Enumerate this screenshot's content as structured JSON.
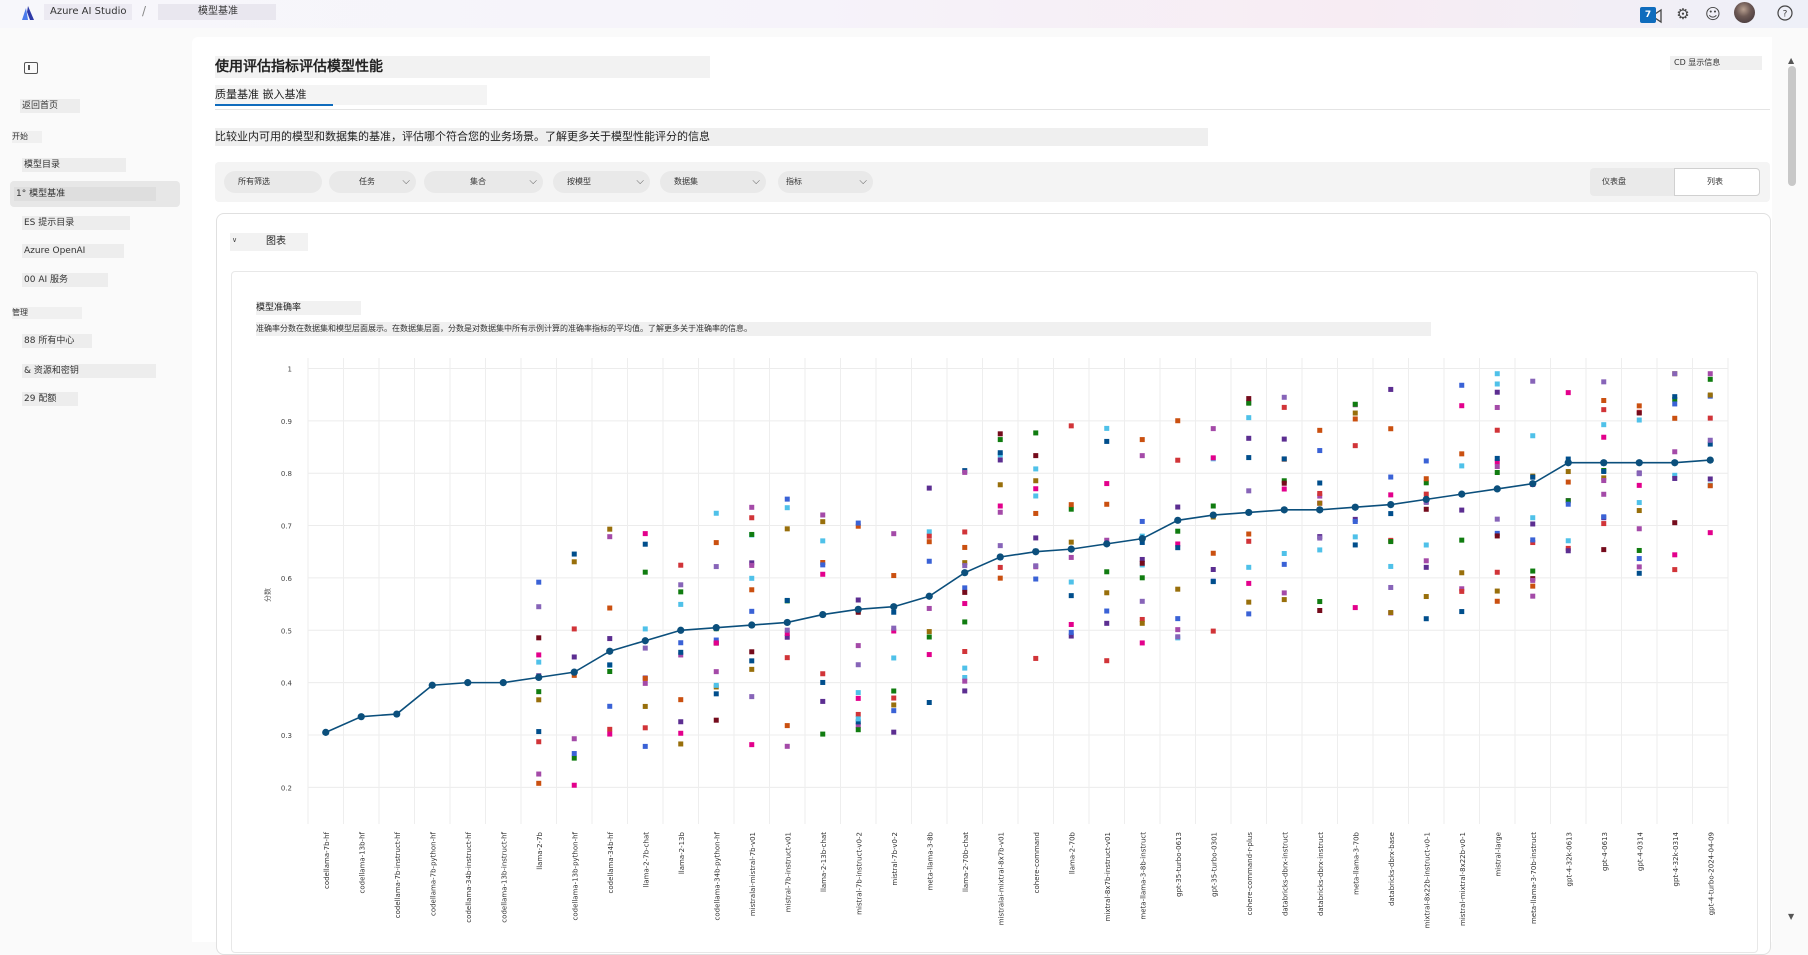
{
  "header": {
    "app_title": "Azure AI Studio",
    "separator": "/",
    "page": "模型基准",
    "notification_count": "7"
  },
  "sidebar": {
    "home": "返回首页",
    "group_start": "开始",
    "items": [
      {
        "label": "模型目录"
      },
      {
        "label": "1° 模型基准"
      },
      {
        "label": "ES 提示目录"
      },
      {
        "label": "Azure OpenAI"
      },
      {
        "label": "00 AI 服务"
      }
    ],
    "group_manage": "管理",
    "manage_items": [
      {
        "label": "88 所有中心"
      },
      {
        "label": "& 资源和密钥"
      },
      {
        "label": "29 配额"
      }
    ]
  },
  "main": {
    "title": "使用评估指标评估模型性能",
    "show_credits": "CD 显示信息",
    "tabs_label": "质量基准  嵌入基准",
    "description": "比较业内可用的模型和数据集的基准，评估哪个符合您的业务场景。了解更多关于模型性能评分的信息",
    "filters": [
      {
        "label": "所有筛选"
      },
      {
        "label": "任务"
      },
      {
        "label": "集合"
      },
      {
        "label": "按模型"
      },
      {
        "label": "数据集"
      },
      {
        "label": "指标"
      }
    ],
    "view_dashboard": "仪表盘",
    "view_list": "列表",
    "chart_toggle": "图表"
  },
  "chart_data": {
    "type": "line",
    "title": "模型准确率",
    "subtitle": "准确率分数在数据集和模型层面展示。在数据集层面，分数是对数据集中所有示例计算的准确率指标的平均值。了解更多关于准确率的信息。",
    "ylabel": "分数",
    "ylim": [
      0.13,
      1.02
    ],
    "y_ticks": [
      "1",
      "0.9",
      "0.8",
      "0.7",
      "0.6",
      "0.5",
      "0.4",
      "0.3",
      "0.2"
    ],
    "categories": [
      "codellama-7b-hf",
      "codellama-13b-hf",
      "codellama-7b-instruct-hf",
      "codellama-7b-python-hf",
      "codellama-34b-instruct-hf",
      "codellama-13b-instruct-hf",
      "llama-2-7b",
      "codellama-13b-python-hf",
      "codellama-34b-hf",
      "llama-2-7b-chat",
      "llama-2-13b",
      "codellama-34b-python-hf",
      "mistralai-mistral-7b-v01",
      "mistral-7b-instruct-v01",
      "llama-2-13b-chat",
      "mistral-7b-instruct-v0-2",
      "mistral-7b-v0-2",
      "meta-llama-3-8b",
      "llama-2-70b-chat",
      "mistralai-mixtral-8x7b-v01",
      "cohere-command",
      "llama-2-70b",
      "mixtral-8x7b-instruct-v01",
      "meta-llama-3-8b-instruct",
      "gpt-35-turbo-0613",
      "gpt-35-turbo-0301",
      "cohere-command-r-plus",
      "databricks-dbrx-instruct",
      "databricks-dbrx-instruct",
      "meta-llama-3-70b",
      "databricks-dbrx-base",
      "mixtral-8x22b-instruct-v0-1",
      "mistral-mixtral-8x22b-v0-1",
      "mistral-large",
      "meta-llama-3-70b-instruct",
      "gpt-4-32k-0613",
      "gpt-4-0613",
      "gpt-4-0314",
      "gpt-4-32k-0314",
      "gpt-4-turbo-2024-04-09"
    ],
    "series": [
      {
        "values": [
          0.305,
          0.335,
          0.34,
          0.395,
          0.4,
          0.4,
          0.41,
          0.42,
          0.46,
          0.48,
          0.5,
          0.505,
          0.51,
          0.515,
          0.53,
          0.54,
          0.545,
          0.565,
          0.61,
          0.64,
          0.65,
          0.655,
          0.665,
          0.675,
          0.71,
          0.72,
          0.725,
          0.73,
          0.73,
          0.735,
          0.74,
          0.75,
          0.76,
          0.77,
          0.78,
          0.82,
          0.82,
          0.82,
          0.82,
          0.825
        ]
      }
    ],
    "scatter_colors": [
      "#4fc1e9",
      "#a44aa8",
      "#d13438",
      "#107c10",
      "#5c2e91",
      "#ca5010",
      "#3a62d6",
      "#e3008c",
      "#986f0b",
      "#004e8c",
      "#8764b8",
      "#750b1c"
    ],
    "line_color": "#0b4f7c"
  }
}
